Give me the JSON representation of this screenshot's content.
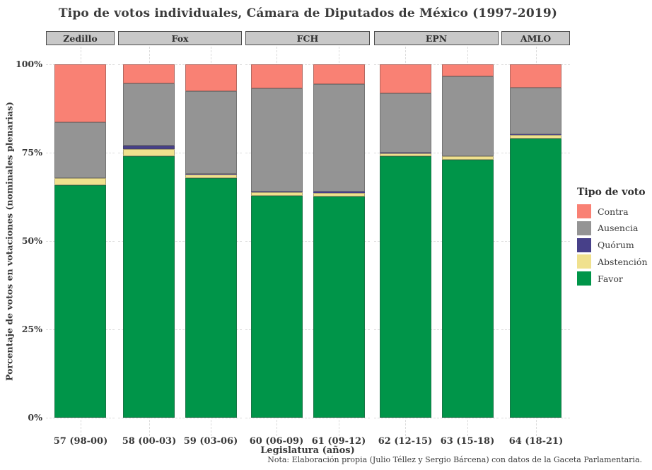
{
  "title": "Tipo de votos individuales, Cámara de Diputados de México (1997-2019)",
  "chart_data": {
    "type": "bar",
    "stacked": true,
    "orientation": "vertical",
    "facets": [
      {
        "label": "Zedillo",
        "categories": [
          "57 (98-00)"
        ]
      },
      {
        "label": "Fox",
        "categories": [
          "58 (00-03)",
          "59 (03-06)"
        ]
      },
      {
        "label": "FCH",
        "categories": [
          "60 (06-09)",
          "61 (09-12)"
        ]
      },
      {
        "label": "EPN",
        "categories": [
          "62 (12-15)",
          "63 (15-18)"
        ]
      },
      {
        "label": "AMLO",
        "categories": [
          "64 (18-21)"
        ]
      }
    ],
    "categories": [
      "57 (98-00)",
      "58 (00-03)",
      "59 (03-06)",
      "60 (06-09)",
      "61 (09-12)",
      "62 (12-15)",
      "63 (15-18)",
      "64 (18-21)"
    ],
    "series": [
      {
        "name": "Contra",
        "color": "#F98174",
        "values": [
          16.4,
          5.4,
          7.6,
          6.8,
          5.6,
          8.2,
          3.3,
          6.6
        ]
      },
      {
        "name": "Ausencia",
        "color": "#949494",
        "values": [
          15.8,
          17.6,
          23.4,
          29.2,
          30.4,
          16.8,
          22.5,
          13.2
        ]
      },
      {
        "name": "Quórum",
        "color": "#474089",
        "values": [
          0.0,
          1.0,
          0.2,
          0.2,
          0.4,
          0.2,
          0.2,
          0.2
        ]
      },
      {
        "name": "Abstención",
        "color": "#F0E18E",
        "values": [
          2.0,
          2.0,
          1.0,
          1.0,
          1.0,
          0.8,
          1.0,
          1.0
        ]
      },
      {
        "name": "Favor",
        "color": "#009549",
        "values": [
          65.8,
          74.0,
          67.8,
          62.8,
          62.6,
          74.0,
          73.0,
          79.0
        ]
      }
    ],
    "stack_order_bottom_to_top": [
      "Favor",
      "Abstención",
      "Quórum",
      "Ausencia",
      "Contra"
    ],
    "xlabel": "Legislatura (años)",
    "ylabel": "Porcentaje de votos en votaciones (nominales plenarias)",
    "ylim": [
      0,
      100
    ],
    "yticks": [
      {
        "label": "0%",
        "value": 0
      },
      {
        "label": "25%",
        "value": 25
      },
      {
        "label": "50%",
        "value": 50
      },
      {
        "label": "75%",
        "value": 75
      },
      {
        "label": "100%",
        "value": 100
      }
    ],
    "grid": "dashed",
    "legend": {
      "title": "Tipo de voto",
      "position": "right",
      "entries": [
        "Contra",
        "Ausencia",
        "Quórum",
        "Abstención",
        "Favor"
      ]
    },
    "caption": "Nota: Elaboración propia (Julio Téllez y Sergio Bárcena) con datos de la Gaceta Parlamentaria."
  },
  "colors": {
    "strip_background": "#C8C8C8",
    "strip_border": "#4D4D4D",
    "text": "#3A3A3A",
    "gridline": "#DCDCDC",
    "background": "#FFFFFF"
  }
}
